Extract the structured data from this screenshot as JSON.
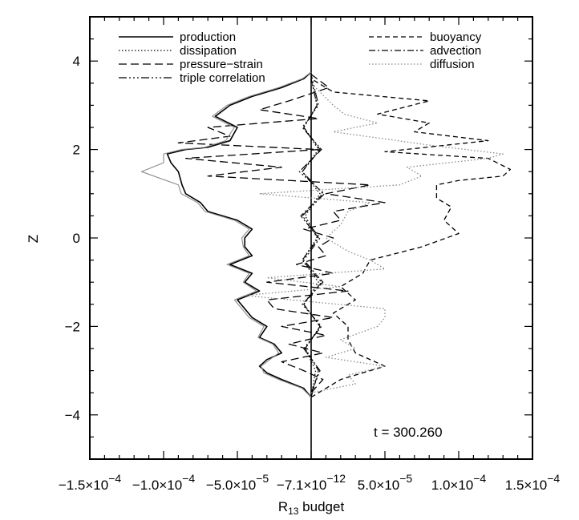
{
  "chart_data": {
    "type": "line",
    "title": "",
    "xlabel": "R",
    "xlabel_sub": "13",
    "xlabel_suffix": " budget",
    "ylabel": "Z",
    "xlim": [
      -0.00015,
      0.00015
    ],
    "ylim": [
      -5,
      5
    ],
    "x_ticks": [
      {
        "value": -0.00015,
        "label": "−1.5×10",
        "exp": "−4"
      },
      {
        "value": -0.0001,
        "label": "−1.0×10",
        "exp": "−4"
      },
      {
        "value": -5e-05,
        "label": "−5.0×10",
        "exp": "−5"
      },
      {
        "value": 0,
        "label": "−7.1×10",
        "exp": "−12"
      },
      {
        "value": 5e-05,
        "label": "5.0×10",
        "exp": "−5"
      },
      {
        "value": 0.0001,
        "label": "1.0×10",
        "exp": "−4"
      },
      {
        "value": 0.00015,
        "label": "1.5×10",
        "exp": "−4"
      }
    ],
    "y_ticks": [
      {
        "value": -4,
        "label": "−4"
      },
      {
        "value": -2,
        "label": "−2"
      },
      {
        "value": 0,
        "label": "0"
      },
      {
        "value": 2,
        "label": "2"
      },
      {
        "value": 4,
        "label": "4"
      }
    ],
    "legend_left": [
      "production",
      "dissipation",
      "pressure−strain",
      "triple correlation"
    ],
    "legend_right": [
      "buoyancy",
      "advection",
      "diffusion"
    ],
    "annotation": "t = 300.260",
    "series": [
      {
        "name": "production",
        "dash": "",
        "stroke": "#000000",
        "width": 1.6,
        "points": [
          [
            0,
            -3.6
          ],
          [
            -5e-06,
            -3.4
          ],
          [
            -2e-05,
            -3.2
          ],
          [
            -3e-05,
            -3.05
          ],
          [
            -3.5e-05,
            -2.9
          ],
          [
            -3e-05,
            -2.75
          ],
          [
            -2e-05,
            -2.6
          ],
          [
            -2.5e-05,
            -2.4
          ],
          [
            -3.5e-05,
            -2.25
          ],
          [
            -3e-05,
            -2.0
          ],
          [
            -4e-05,
            -1.8
          ],
          [
            -4.5e-05,
            -1.6
          ],
          [
            -5e-05,
            -1.4
          ],
          [
            -3.5e-05,
            -1.2
          ],
          [
            -4.5e-05,
            -1.0
          ],
          [
            -4e-05,
            -0.8
          ],
          [
            -5.5e-05,
            -0.6
          ],
          [
            -4e-05,
            -0.4
          ],
          [
            -4.5e-05,
            -0.2
          ],
          [
            -4.5e-05,
            0.0
          ],
          [
            -4e-05,
            0.2
          ],
          [
            -5e-05,
            0.4
          ],
          [
            -7e-05,
            0.6
          ],
          [
            -7.5e-05,
            0.8
          ],
          [
            -8.5e-05,
            1.0
          ],
          [
            -8.75e-05,
            1.2
          ],
          [
            -9e-05,
            1.5
          ],
          [
            -9.5e-05,
            1.7
          ],
          [
            -9.75e-05,
            1.9
          ],
          [
            -8.5e-05,
            2.0
          ],
          [
            -7e-05,
            2.05
          ],
          [
            -5.5e-05,
            2.2
          ],
          [
            -5e-05,
            2.5
          ],
          [
            -6.5e-05,
            2.75
          ],
          [
            -5.5e-05,
            3.0
          ],
          [
            -4e-05,
            3.2
          ],
          [
            -2e-05,
            3.4
          ],
          [
            -5e-06,
            3.6
          ],
          [
            0,
            3.75
          ]
        ]
      },
      {
        "name": "dissipation",
        "dash": "1.5,2.5",
        "stroke": "#000000",
        "width": 1.3,
        "points": [
          [
            0,
            -3.6
          ],
          [
            3e-06,
            -3.0
          ],
          [
            -4e-06,
            -2.5
          ],
          [
            6e-06,
            -2.0
          ],
          [
            -5e-06,
            -1.5
          ],
          [
            5e-06,
            -1.0
          ],
          [
            -6e-06,
            -0.5
          ],
          [
            4e-06,
            0.0
          ],
          [
            -4e-06,
            0.5
          ],
          [
            6e-06,
            1.0
          ],
          [
            -6e-06,
            1.5
          ],
          [
            5e-06,
            2.0
          ],
          [
            -5e-06,
            2.5
          ],
          [
            4e-06,
            3.0
          ],
          [
            0,
            3.6
          ]
        ]
      },
      {
        "name": "pressure−strain",
        "dash": "10,5",
        "stroke": "#000000",
        "width": 1.3,
        "points": [
          [
            0,
            -3.5
          ],
          [
            8e-06,
            -3.2
          ],
          [
            -5e-06,
            -3.0
          ],
          [
            -2e-05,
            -2.8
          ],
          [
            8e-06,
            -2.6
          ],
          [
            -1.5e-05,
            -2.4
          ],
          [
            1e-05,
            -2.2
          ],
          [
            -2e-05,
            -2.0
          ],
          [
            1.5e-05,
            -1.8
          ],
          [
            -2.5e-05,
            -1.6
          ],
          [
            -3e-05,
            -1.4
          ],
          [
            2.5e-05,
            -1.2
          ],
          [
            -3e-05,
            -1.0
          ],
          [
            1.5e-05,
            -0.8
          ],
          [
            -1e-05,
            -0.6
          ],
          [
            1e-05,
            -0.4
          ],
          [
            5e-06,
            -0.2
          ],
          [
            1.5e-05,
            0.0
          ],
          [
            -5e-06,
            0.2
          ],
          [
            2e-05,
            0.4
          ],
          [
            1.5e-05,
            0.6
          ],
          [
            5e-05,
            0.8
          ],
          [
            1e-05,
            1.0
          ],
          [
            4e-05,
            1.2
          ],
          [
            -7e-05,
            1.4
          ],
          [
            -2e-05,
            1.6
          ],
          [
            -8.5e-05,
            1.8
          ],
          [
            5e-06,
            2.0
          ],
          [
            -9e-05,
            2.15
          ],
          [
            -5.5e-05,
            2.3
          ],
          [
            -7e-05,
            2.5
          ],
          [
            5e-06,
            2.7
          ],
          [
            -3.5e-05,
            2.9
          ],
          [
            -1.5e-05,
            3.1
          ],
          [
            1.2e-05,
            3.4
          ],
          [
            0,
            3.7
          ]
        ]
      },
      {
        "name": "triple correlation",
        "dash": "10,3,2,3,2,3,2,3",
        "stroke": "#000000",
        "width": 1.2,
        "points": [
          [
            0,
            -3.5
          ],
          [
            6e-06,
            -3.0
          ],
          [
            -5e-06,
            -2.5
          ],
          [
            7e-06,
            -2.0
          ],
          [
            -6e-06,
            -1.5
          ],
          [
            8e-06,
            -1.0
          ],
          [
            -5e-06,
            -0.5
          ],
          [
            6e-06,
            0.0
          ],
          [
            -6e-06,
            0.5
          ],
          [
            9e-06,
            1.0
          ],
          [
            -8e-06,
            1.5
          ],
          [
            7e-06,
            2.0
          ],
          [
            -6e-06,
            2.5
          ],
          [
            5e-06,
            3.0
          ],
          [
            0,
            3.7
          ]
        ]
      },
      {
        "name": "buoyancy",
        "dash": "6,4",
        "stroke": "#000000",
        "width": 1.3,
        "points": [
          [
            0,
            -3.6
          ],
          [
            2e-05,
            -3.2
          ],
          [
            5e-05,
            -2.9
          ],
          [
            3e-05,
            -2.6
          ],
          [
            2.5e-05,
            -2.3
          ],
          [
            2.5e-05,
            -2.0
          ],
          [
            1.5e-05,
            -1.7
          ],
          [
            3e-05,
            -1.4
          ],
          [
            2e-05,
            -1.1
          ],
          [
            3.5e-05,
            -0.8
          ],
          [
            4e-05,
            -0.5
          ],
          [
            7.5e-05,
            -0.2
          ],
          [
            0.0001,
            0.1
          ],
          [
            9e-05,
            0.4
          ],
          [
            9.5e-05,
            0.7
          ],
          [
            8.5e-05,
            0.9
          ],
          [
            8.5e-05,
            1.2
          ],
          [
            0.0001,
            1.3
          ],
          [
            0.00013,
            1.4
          ],
          [
            0.000135,
            1.55
          ],
          [
            0.00012,
            1.8
          ],
          [
            5e-05,
            1.95
          ],
          [
            0.00012,
            2.2
          ],
          [
            7e-05,
            2.4
          ],
          [
            8e-05,
            2.6
          ],
          [
            4.5e-05,
            2.8
          ],
          [
            8e-05,
            3.1
          ],
          [
            1.5e-05,
            3.3
          ],
          [
            0,
            3.6
          ]
        ]
      },
      {
        "name": "advection",
        "dash": "8,3,2,3",
        "stroke": "#000000",
        "width": 1.2,
        "points": [
          [
            0,
            -3.6
          ],
          [
            5e-06,
            -3.0
          ],
          [
            -4e-06,
            -2.5
          ],
          [
            6e-06,
            -2.0
          ],
          [
            -5e-06,
            -1.5
          ],
          [
            7e-06,
            -1.0
          ],
          [
            -6e-06,
            -0.5
          ],
          [
            5e-06,
            0.0
          ],
          [
            -7e-06,
            0.5
          ],
          [
            8e-06,
            1.0
          ],
          [
            -6e-06,
            1.5
          ],
          [
            6e-06,
            2.0
          ],
          [
            -5e-06,
            2.5
          ],
          [
            4e-06,
            3.0
          ],
          [
            0,
            3.6
          ]
        ]
      },
      {
        "name": "diffusion",
        "dash": "1.5,2.5",
        "stroke": "#8a8a8a",
        "width": 1.3,
        "points": [
          [
            0,
            -3.5
          ],
          [
            3e-05,
            -3.3
          ],
          [
            2.5e-05,
            -3.1
          ],
          [
            5e-05,
            -2.9
          ],
          [
            1e-05,
            -2.7
          ],
          [
            3e-05,
            -2.5
          ],
          [
            2e-05,
            -2.3
          ],
          [
            4.5e-05,
            -2.0
          ],
          [
            5e-05,
            -1.8
          ],
          [
            5e-05,
            -1.6
          ],
          [
            -4.5e-05,
            -1.3
          ],
          [
            2e-05,
            -1.1
          ],
          [
            -3e-05,
            -0.9
          ],
          [
            5e-05,
            -0.7
          ],
          [
            4e-05,
            -0.5
          ],
          [
            2.5e-05,
            -0.3
          ],
          [
            1e-05,
            0.0
          ],
          [
            2e-05,
            0.3
          ],
          [
            2.5e-05,
            0.6
          ],
          [
            4e-05,
            0.8
          ],
          [
            -3.5e-05,
            1.0
          ],
          [
            6e-05,
            1.2
          ],
          [
            7.5e-05,
            1.4
          ],
          [
            6.5e-05,
            1.6
          ],
          [
            0.00012,
            1.8
          ],
          [
            0.00013,
            1.9
          ],
          [
            8e-05,
            2.1
          ],
          [
            1.5e-05,
            2.4
          ],
          [
            4.5e-05,
            2.6
          ],
          [
            2.25e-05,
            2.8
          ],
          [
            1.5e-05,
            3.0
          ],
          [
            0,
            3.5
          ]
        ]
      },
      {
        "name": "production-twin",
        "dash": "",
        "stroke": "#8a8a8a",
        "width": 1.1,
        "points": [
          [
            0,
            -3.6
          ],
          [
            -6e-06,
            -3.4
          ],
          [
            -2.2e-05,
            -3.2
          ],
          [
            -3.2e-05,
            -3.05
          ],
          [
            -3.4e-05,
            -2.9
          ],
          [
            -2.8e-05,
            -2.75
          ],
          [
            -2.2e-05,
            -2.6
          ],
          [
            -2.6e-05,
            -2.4
          ],
          [
            -3.6e-05,
            -2.25
          ],
          [
            -3.2e-05,
            -2.0
          ],
          [
            -4.2e-05,
            -1.8
          ],
          [
            -4.7e-05,
            -1.6
          ],
          [
            -5.2e-05,
            -1.4
          ],
          [
            -3.7e-05,
            -1.2
          ],
          [
            -4.6e-05,
            -1.0
          ],
          [
            -4.2e-05,
            -0.8
          ],
          [
            -5.7e-05,
            -0.6
          ],
          [
            -4.2e-05,
            -0.4
          ],
          [
            -4.6e-05,
            -0.2
          ],
          [
            -4.7e-05,
            0.0
          ],
          [
            -4.2e-05,
            0.2
          ],
          [
            -5.2e-05,
            0.4
          ],
          [
            -7.2e-05,
            0.6
          ],
          [
            -7.7e-05,
            0.8
          ],
          [
            -8.8e-05,
            1.0
          ],
          [
            -9e-05,
            1.2
          ],
          [
            -0.000115,
            1.5
          ],
          [
            -0.0001,
            1.7
          ],
          [
            -0.0001,
            1.9
          ],
          [
            -8.8e-05,
            2.0
          ],
          [
            -7.2e-05,
            2.05
          ],
          [
            -5.8e-05,
            2.2
          ],
          [
            -5.2e-05,
            2.5
          ],
          [
            -6.7e-05,
            2.75
          ],
          [
            -5.7e-05,
            3.0
          ],
          [
            -4.2e-05,
            3.2
          ],
          [
            -2.2e-05,
            3.4
          ],
          [
            -6e-06,
            3.6
          ],
          [
            0,
            3.75
          ]
        ]
      }
    ]
  }
}
